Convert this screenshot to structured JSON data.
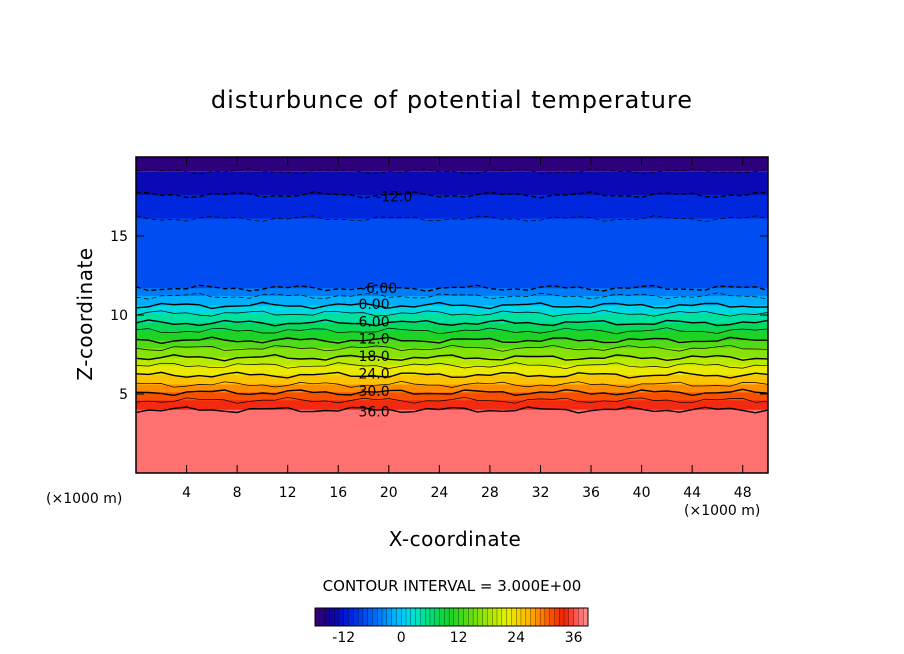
{
  "chart_data": {
    "type": "heatmap",
    "title": "disturbunce of potential temperature",
    "xlabel": "X-coordinate",
    "ylabel": "Z-coordinate",
    "x_unit_left": "(×1000 m)",
    "x_unit_right": "(×1000 m)",
    "xlim": [
      0,
      50
    ],
    "ylim": [
      0,
      20
    ],
    "x_ticks": [
      4,
      8,
      12,
      16,
      20,
      24,
      28,
      32,
      36,
      40,
      44,
      48
    ],
    "y_ticks": [
      5,
      10,
      15
    ],
    "contour_interval_text": "CONTOUR INTERVAL = 3.000E+00",
    "colorbar": {
      "min": -18,
      "max": 39,
      "ticks": [
        -12,
        0,
        12,
        24,
        36
      ]
    },
    "contour_labels": [
      {
        "text": "-12.0",
        "x": 19.0,
        "z": 17.5
      },
      {
        "text": "-6.00",
        "x": 17.8,
        "z": 11.7
      },
      {
        "text": "0.00",
        "x": 17.6,
        "z": 10.7
      },
      {
        "text": "6.00",
        "x": 17.6,
        "z": 9.6
      },
      {
        "text": "12.0",
        "x": 17.6,
        "z": 8.5
      },
      {
        "text": "18.0",
        "x": 17.6,
        "z": 7.4
      },
      {
        "text": "24.0",
        "x": 17.6,
        "z": 6.3
      },
      {
        "text": "30.0",
        "x": 17.6,
        "z": 5.2
      },
      {
        "text": "36.0",
        "x": 17.6,
        "z": 3.9
      }
    ],
    "approx_contour_heights": [
      {
        "value": -15,
        "z": 19.1
      },
      {
        "value": -12,
        "z": 17.6
      },
      {
        "value": -9,
        "z": 16.1
      },
      {
        "value": -6,
        "z": 11.7
      },
      {
        "value": -3,
        "z": 11.2
      },
      {
        "value": 0,
        "z": 10.6
      },
      {
        "value": 3,
        "z": 10.1
      },
      {
        "value": 6,
        "z": 9.5
      },
      {
        "value": 9,
        "z": 9.0
      },
      {
        "value": 12,
        "z": 8.4
      },
      {
        "value": 15,
        "z": 7.9
      },
      {
        "value": 18,
        "z": 7.3
      },
      {
        "value": 21,
        "z": 6.8
      },
      {
        "value": 24,
        "z": 6.2
      },
      {
        "value": 27,
        "z": 5.6
      },
      {
        "value": 30,
        "z": 5.1
      },
      {
        "value": 33,
        "z": 4.6
      },
      {
        "value": 36,
        "z": 4.0
      }
    ]
  }
}
